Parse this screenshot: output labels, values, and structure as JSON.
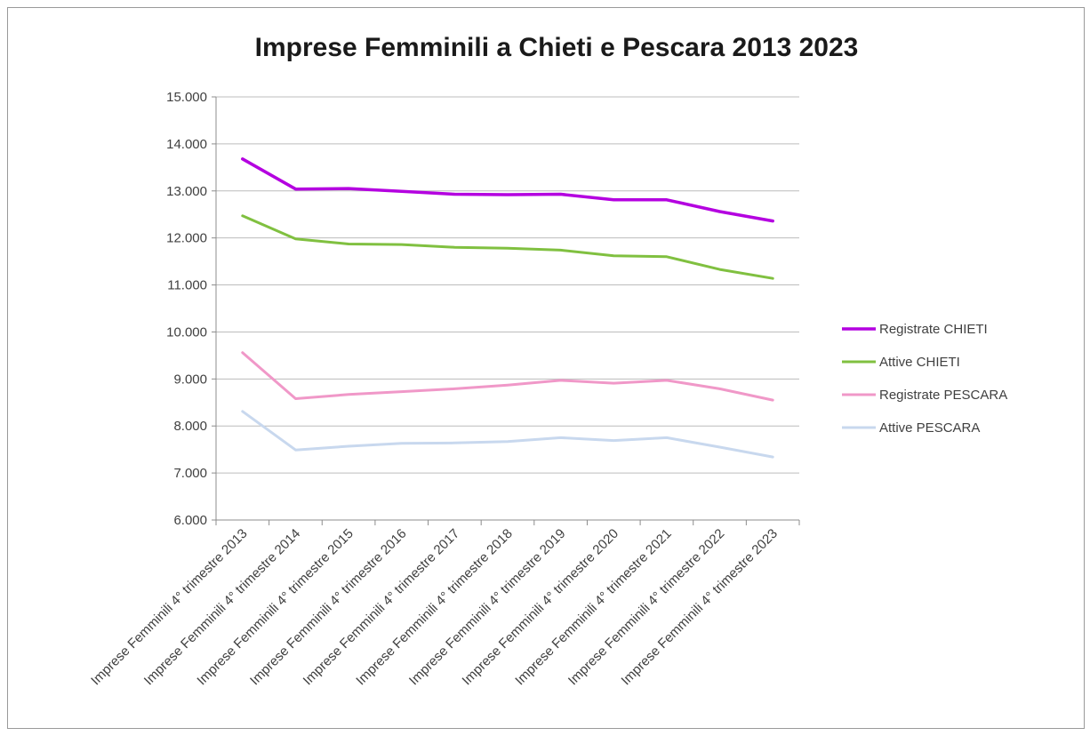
{
  "chart_data": {
    "type": "line",
    "title": "Imprese Femminili a Chieti e Pescara 2013 2023",
    "xlabel": "",
    "ylabel": "",
    "categories": [
      "Imprese Femminili 4° trimestre 2013",
      "Imprese Femminili 4° trimestre 2014",
      "Imprese Femminili 4° trimestre 2015",
      "Imprese Femminili 4° trimestre 2016",
      "Imprese Femminili 4° trimestre 2017",
      "Imprese Femminili 4° trimestre 2018",
      "Imprese Femminili 4° trimestre 2019",
      "Imprese Femminili 4° trimestre 2020",
      "Imprese Femminili 4° trimestre 2021",
      "Imprese Femminili 4° trimestre 2022",
      "Imprese Femminili 4° trimestre 2023"
    ],
    "ylim": [
      6000,
      15000
    ],
    "yticks": [
      6000,
      7000,
      8000,
      9000,
      10000,
      11000,
      12000,
      13000,
      14000,
      15000
    ],
    "ytick_labels": [
      "6.000",
      "7.000",
      "8.000",
      "9.000",
      "10.000",
      "11.000",
      "12.000",
      "13.000",
      "14.000",
      "15.000"
    ],
    "grid": "horizontal",
    "legend_position": "right",
    "series": [
      {
        "name": "Registrate CHIETI",
        "color": "#b400e0",
        "values": [
          13680,
          13040,
          13050,
          12990,
          12930,
          12920,
          12930,
          12810,
          12810,
          12560,
          12360
        ]
      },
      {
        "name": "Attive CHIETI",
        "color": "#80c040",
        "values": [
          12470,
          11980,
          11870,
          11860,
          11800,
          11780,
          11740,
          11620,
          11600,
          11330,
          11140
        ]
      },
      {
        "name": "Registrate PESCARA",
        "color": "#f098c8",
        "values": [
          9560,
          8580,
          8670,
          8730,
          8790,
          8870,
          8970,
          8910,
          8970,
          8790,
          8550
        ]
      },
      {
        "name": "Attive PESCARA",
        "color": "#c8d8ee",
        "values": [
          8310,
          7490,
          7570,
          7630,
          7640,
          7670,
          7750,
          7690,
          7750,
          7550,
          7340
        ]
      }
    ]
  }
}
